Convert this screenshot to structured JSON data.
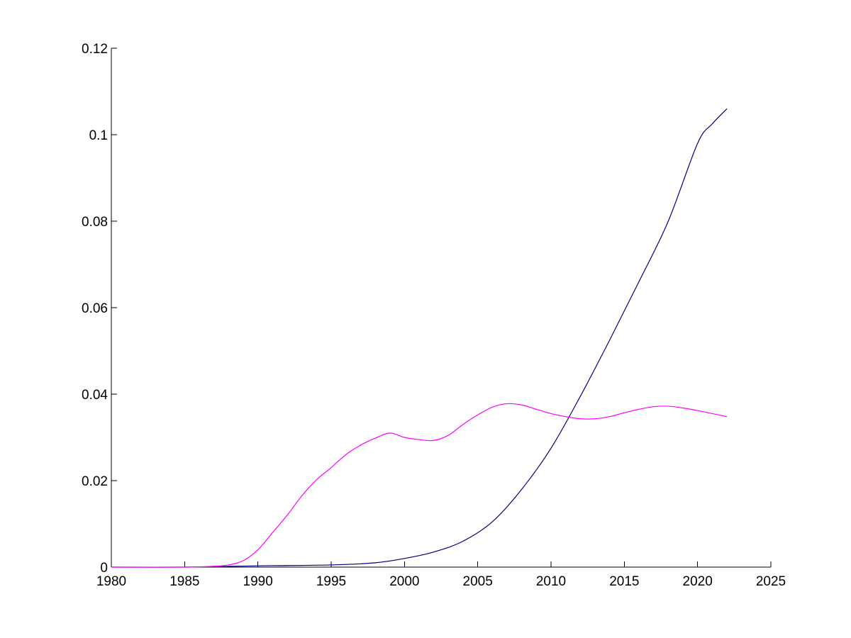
{
  "chart_data": {
    "type": "line",
    "title": "",
    "xlabel": "",
    "ylabel": "",
    "xlim": [
      1980,
      2025
    ],
    "ylim": [
      0,
      0.12
    ],
    "x_ticks": [
      1980,
      1985,
      1990,
      1995,
      2000,
      2005,
      2010,
      2015,
      2020,
      2025
    ],
    "y_ticks": [
      0,
      0.02,
      0.04,
      0.06,
      0.08,
      0.1,
      0.12
    ],
    "x_tick_labels": [
      "1980",
      "1985",
      "1990",
      "1995",
      "2000",
      "2005",
      "2010",
      "2015",
      "2020",
      "2025"
    ],
    "y_tick_labels": [
      "0",
      "0.02",
      "0.04",
      "0.06",
      "0.08",
      "0.1",
      "0.12"
    ],
    "grid": false,
    "legend": "none",
    "series": [
      {
        "color": "#00007f",
        "x": [
          1980,
          1985,
          1990,
          1995,
          1998,
          2000,
          2002,
          2004,
          2006,
          2008,
          2010,
          2012,
          2014,
          2016,
          2018,
          2020,
          2021,
          2022
        ],
        "y": [
          0,
          0,
          0.0003,
          0.0005,
          0.001,
          0.002,
          0.0035,
          0.006,
          0.0105,
          0.018,
          0.0275,
          0.0395,
          0.0525,
          0.066,
          0.08,
          0.098,
          0.1025,
          0.106
        ]
      },
      {
        "color": "#ff00ff",
        "x": [
          1980,
          1985,
          1987,
          1988,
          1989,
          1990,
          1991,
          1992,
          1993,
          1994,
          1995,
          1996,
          1997,
          1998,
          1999,
          2000,
          2001,
          2002,
          2003,
          2004,
          2005,
          2006,
          2007,
          2008,
          2009,
          2010,
          2011,
          2012,
          2013,
          2014,
          2015,
          2016,
          2017,
          2018,
          2019,
          2020,
          2021,
          2022
        ],
        "y": [
          0,
          0,
          0.0002,
          0.0005,
          0.0015,
          0.004,
          0.008,
          0.012,
          0.0165,
          0.0202,
          0.023,
          0.026,
          0.0282,
          0.0298,
          0.031,
          0.03,
          0.0295,
          0.0293,
          0.0305,
          0.033,
          0.0352,
          0.037,
          0.0378,
          0.0375,
          0.0365,
          0.0355,
          0.0348,
          0.0343,
          0.0343,
          0.0348,
          0.0357,
          0.0365,
          0.0371,
          0.0372,
          0.0368,
          0.0362,
          0.0355,
          0.0348
        ]
      }
    ]
  }
}
